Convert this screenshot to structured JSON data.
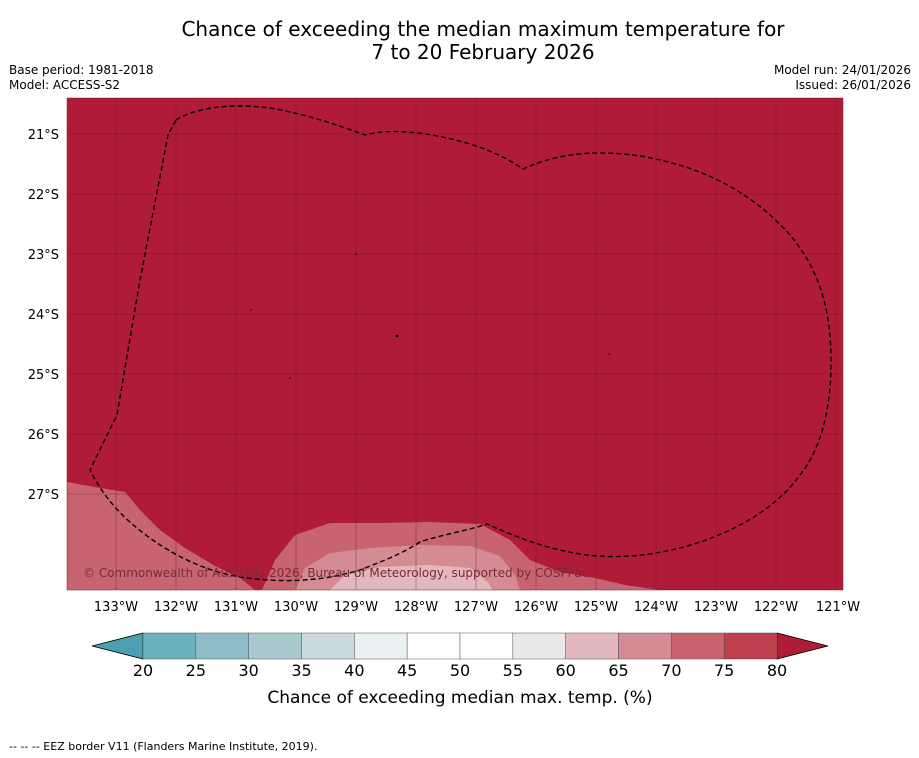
{
  "title_line1": "Chance of exceeding the median maximum temperature for",
  "title_line2": "7 to 20 February 2026",
  "base_period": "Base period: 1981-2018",
  "model": "Model: ACCESS-S2",
  "model_run": "Model run: 24/01/2026",
  "issued": "Issued: 26/01/2026",
  "copyright": "© Commonwealth of Australia 2026, Bureau of Meteorology, supported by COSPPac",
  "lat_labels": [
    "21°S",
    "22°S",
    "23°S",
    "24°S",
    "25°S",
    "26°S",
    "27°S"
  ],
  "lon_labels": [
    "133°W",
    "132°W",
    "131°W",
    "130°W",
    "129°W",
    "128°W",
    "127°W",
    "126°W",
    "125°W",
    "124°W",
    "123°W",
    "122°W",
    "121°W"
  ],
  "colorbar": {
    "ticks": [
      "20",
      "25",
      "30",
      "35",
      "40",
      "45",
      "50",
      "55",
      "60",
      "65",
      "70",
      "75",
      "80"
    ],
    "colors": [
      "#4aa0b0",
      "#6bb0bf",
      "#8fbdc7",
      "#aac9cf",
      "#cbdadf",
      "#ebf1f3",
      "#ffffff",
      "#ffffff",
      "#e8e8e8",
      "#e2b8bd",
      "#d58b93",
      "#c8646f",
      "#bd3e4c",
      "#b01c38"
    ],
    "title": "Chance of exceeding median max. temp. (%)"
  },
  "footnote": "--  --  -- EEZ border V11 (Flanders Marine Institute, 2019).",
  "colors": {
    "high": "#b01c38",
    "mid_high": "#c8646f",
    "light": "#d58b93",
    "lighter": "#e2b8bd"
  }
}
